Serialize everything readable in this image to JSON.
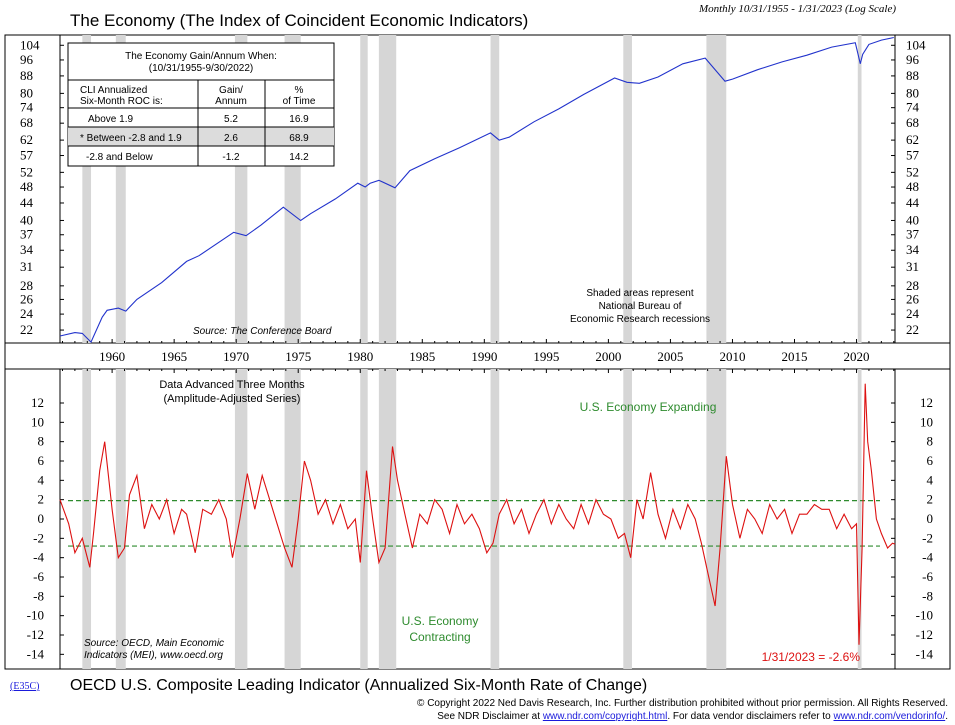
{
  "header": {
    "title": "The Economy (The Index of Coincident Economic Indicators)",
    "date_range": "Monthly 10/31/1955 - 1/31/2023 (Log Scale)"
  },
  "top_panel": {
    "source": "Source: The Conference Board",
    "recession_note": [
      "Shaded areas represent",
      "National Bureau of",
      "Economic Research recessions"
    ]
  },
  "gain_table": {
    "title_line1": "The Economy Gain/Annum When:",
    "title_line2": "(10/31/1955-9/30/2022)",
    "col1_header": [
      "CLI Annualized",
      "Six-Month ROC is:"
    ],
    "col2_header": [
      "Gain/",
      "Annum"
    ],
    "col3_header": [
      "%",
      "of Time"
    ],
    "rows": [
      {
        "label": "Above 1.9",
        "gain": "5.2",
        "pct": "16.9",
        "highlight": false
      },
      {
        "label": "* Between -2.8 and 1.9",
        "gain": "2.6",
        "pct": "68.9",
        "highlight": true
      },
      {
        "label": "-2.8 and Below",
        "gain": "-1.2",
        "pct": "14.2",
        "highlight": false
      }
    ]
  },
  "bottom_panel": {
    "note_line1": "Data Advanced Three Months",
    "note_line2": "(Amplitude-Adjusted Series)",
    "expanding_label": "U.S. Economy Expanding",
    "contracting_line1": "U.S. Economy",
    "contracting_line2": "Contracting",
    "source_line1": "Source: OECD, Main Economic",
    "source_line2": "Indicators (MEI), www.oecd.org",
    "last_value_label": "1/31/2023 = -2.6%",
    "chart_title": "OECD U.S. Composite Leading Indicator (Annualized Six-Month Rate of Change)"
  },
  "footer": {
    "code": "(E35C)",
    "line1": "© Copyright 2022 Ned Davis Research, Inc. Further distribution prohibited without prior permission. All Rights Reserved.",
    "line2_prefix": "See NDR Disclaimer at ",
    "link1": "www.ndr.com/copyright.html",
    "line2_middle": ". For data vendor disclaimers refer to ",
    "link2": "www.ndr.com/vendorinfo/",
    "line2_suffix": "."
  },
  "colors": {
    "economy_line": "#2233cc",
    "cli_line": "#dd1111",
    "threshold_line": "#2e8b2e",
    "recession_shade": "#d6d6d6",
    "last_value_label": "#dd1111",
    "expanding_label": "#2e8b2e"
  },
  "chart_data": [
    {
      "type": "line",
      "title": "The Economy (The Index of Coincident Economic Indicators)",
      "scale": "log",
      "ylim": [
        20.5,
        110
      ],
      "xlim": [
        1955.8,
        2023.1
      ],
      "y_ticks": [
        22,
        24,
        26,
        28,
        31,
        34,
        37,
        40,
        44,
        48,
        52,
        57,
        62,
        68,
        74,
        80,
        88,
        96,
        104
      ],
      "x_ticks": [
        1960,
        1965,
        1970,
        1975,
        1980,
        1985,
        1990,
        1995,
        2000,
        2005,
        2010,
        2015,
        2020
      ],
      "grid": false,
      "series": [
        {
          "x": [
            1955.8,
            1957.0,
            1957.6,
            1958.3,
            1959.2,
            1959.6,
            1960.5,
            1961.1,
            1962,
            1964,
            1966,
            1967,
            1969.8,
            1970.8,
            1972,
            1973.8,
            1975.2,
            1976,
            1978,
            1979.8,
            1980.4,
            1980.8,
            1981.5,
            1982.8,
            1984,
            1986,
            1988,
            1990.5,
            1991.2,
            1992,
            1994,
            1996,
            1998,
            2000.5,
            2001.5,
            2002.5,
            2004,
            2006,
            2007.8,
            2009.4,
            2010,
            2012,
            2014,
            2016,
            2018,
            2019.9,
            2020.3,
            2020.5,
            2021,
            2022,
            2023
          ],
          "values": [
            21.3,
            21.7,
            21.6,
            20.6,
            23.6,
            24.5,
            24.8,
            24.4,
            26.0,
            28.5,
            32.0,
            33.0,
            37.5,
            36.8,
            39.0,
            43.0,
            40.0,
            41.5,
            45.0,
            49.0,
            48.0,
            49.0,
            49.8,
            47.8,
            52.5,
            56.0,
            59.5,
            64.5,
            62.0,
            63.0,
            68.5,
            73.5,
            79.5,
            87.0,
            85.0,
            84.5,
            87.5,
            94.0,
            97.0,
            85.5,
            86.5,
            91.0,
            95.0,
            98.5,
            103.0,
            105.5,
            94.0,
            99.0,
            104.5,
            107.0,
            108.5
          ]
        }
      ],
      "annotations": [
        "Source: The Conference Board",
        "Shaded areas represent National Bureau of Economic Research recessions"
      ]
    },
    {
      "type": "line",
      "title": "OECD U.S. Composite Leading Indicator (Annualized Six-Month Rate of Change)",
      "ylim": [
        -15,
        15
      ],
      "xlim": [
        1955.8,
        2023.1
      ],
      "y_ticks": [
        -14,
        -12,
        -10,
        -8,
        -6,
        -4,
        -2,
        0,
        2,
        4,
        6,
        8,
        10,
        12
      ],
      "thresholds": [
        1.9,
        -2.8
      ],
      "grid": false,
      "series": [
        {
          "x": [
            1955.8,
            1956.5,
            1957.0,
            1957.6,
            1958.2,
            1958.5,
            1959.0,
            1959.4,
            1960.0,
            1960.5,
            1961.0,
            1961.4,
            1962.0,
            1962.6,
            1963.2,
            1963.8,
            1964.4,
            1965.0,
            1965.6,
            1966.0,
            1966.7,
            1967.3,
            1968.0,
            1968.6,
            1969.2,
            1969.7,
            1970.3,
            1970.9,
            1971.5,
            1972.1,
            1972.7,
            1973.3,
            1973.9,
            1974.5,
            1975.0,
            1975.5,
            1976.0,
            1976.6,
            1977.2,
            1977.8,
            1978.4,
            1979.0,
            1979.6,
            1980.0,
            1980.5,
            1981.0,
            1981.5,
            1982.0,
            1982.6,
            1983.0,
            1983.6,
            1984.2,
            1984.8,
            1985.4,
            1986.0,
            1986.6,
            1987.2,
            1987.8,
            1988.4,
            1989.0,
            1989.6,
            1990.2,
            1990.7,
            1991.2,
            1991.8,
            1992.4,
            1993.0,
            1993.6,
            1994.2,
            1994.8,
            1995.4,
            1996.0,
            1996.6,
            1997.2,
            1997.8,
            1998.4,
            1999.0,
            1999.6,
            2000.2,
            2000.8,
            2001.3,
            2001.8,
            2002.3,
            2002.8,
            2003.4,
            2004.0,
            2004.6,
            2005.2,
            2005.8,
            2006.4,
            2007.0,
            2007.5,
            2008.0,
            2008.6,
            2009.0,
            2009.5,
            2010.0,
            2010.6,
            2011.2,
            2011.8,
            2012.4,
            2013.0,
            2013.6,
            2014.2,
            2014.8,
            2015.4,
            2016.0,
            2016.6,
            2017.2,
            2017.8,
            2018.4,
            2019.0,
            2019.6,
            2020.0,
            2020.2,
            2020.45,
            2020.7,
            2020.9,
            2021.2,
            2021.6,
            2022.0,
            2022.5,
            2022.9,
            2023.1
          ],
          "values": [
            2.0,
            -0.5,
            -3.5,
            -2.0,
            -5.0,
            -1.5,
            5.0,
            8.0,
            1.0,
            -4.0,
            -3.0,
            2.5,
            4.5,
            -1.0,
            1.5,
            0.0,
            2.0,
            -1.5,
            1.0,
            0.5,
            -3.5,
            1.0,
            0.5,
            2.0,
            0.0,
            -4.0,
            0.0,
            4.7,
            1.0,
            4.5,
            2.0,
            -0.5,
            -3.0,
            -5.0,
            0.0,
            6.0,
            4.0,
            0.5,
            2.0,
            -0.5,
            1.5,
            -1.0,
            0.0,
            -4.5,
            5.0,
            0.0,
            -4.5,
            -3.0,
            7.5,
            4.0,
            0.5,
            -3.0,
            0.5,
            -0.5,
            2.0,
            1.0,
            -1.5,
            1.5,
            -0.5,
            0.5,
            -1.0,
            -3.5,
            -2.5,
            0.5,
            2.0,
            -0.5,
            1.0,
            -1.5,
            0.5,
            2.0,
            -0.5,
            1.5,
            0.0,
            -1.0,
            1.5,
            -0.5,
            2.0,
            0.5,
            0.0,
            -2.0,
            -1.5,
            -4.0,
            2.0,
            0.0,
            4.8,
            0.5,
            -2.0,
            1.0,
            -1.0,
            1.5,
            0.0,
            -2.5,
            -5.5,
            -9.0,
            -3.0,
            6.5,
            1.5,
            -2.0,
            1.0,
            0.0,
            -1.5,
            1.5,
            0.0,
            1.0,
            -1.5,
            0.5,
            0.5,
            1.5,
            1.0,
            1.0,
            -1.0,
            0.5,
            -1.0,
            -0.5,
            -13.0,
            -3.0,
            14.0,
            8.0,
            5.0,
            0.0,
            -1.5,
            -3.0,
            -2.5,
            -2.6
          ]
        }
      ],
      "annotations": [
        "Data Advanced Three Months (Amplitude-Adjusted Series)",
        "U.S. Economy Expanding",
        "U.S. Economy Contracting",
        "Source: OECD, Main Economic Indicators (MEI), www.oecd.org",
        "1/31/2023 = -2.6%"
      ]
    }
  ],
  "recessions": [
    [
      1957.6,
      1958.3
    ],
    [
      1960.3,
      1961.1
    ],
    [
      1969.9,
      1970.9
    ],
    [
      1973.9,
      1975.2
    ],
    [
      1980.0,
      1980.6
    ],
    [
      1981.5,
      1982.9
    ],
    [
      1990.5,
      1991.2
    ],
    [
      2001.2,
      2001.9
    ],
    [
      2007.9,
      2009.5
    ],
    [
      2020.1,
      2020.4
    ]
  ]
}
